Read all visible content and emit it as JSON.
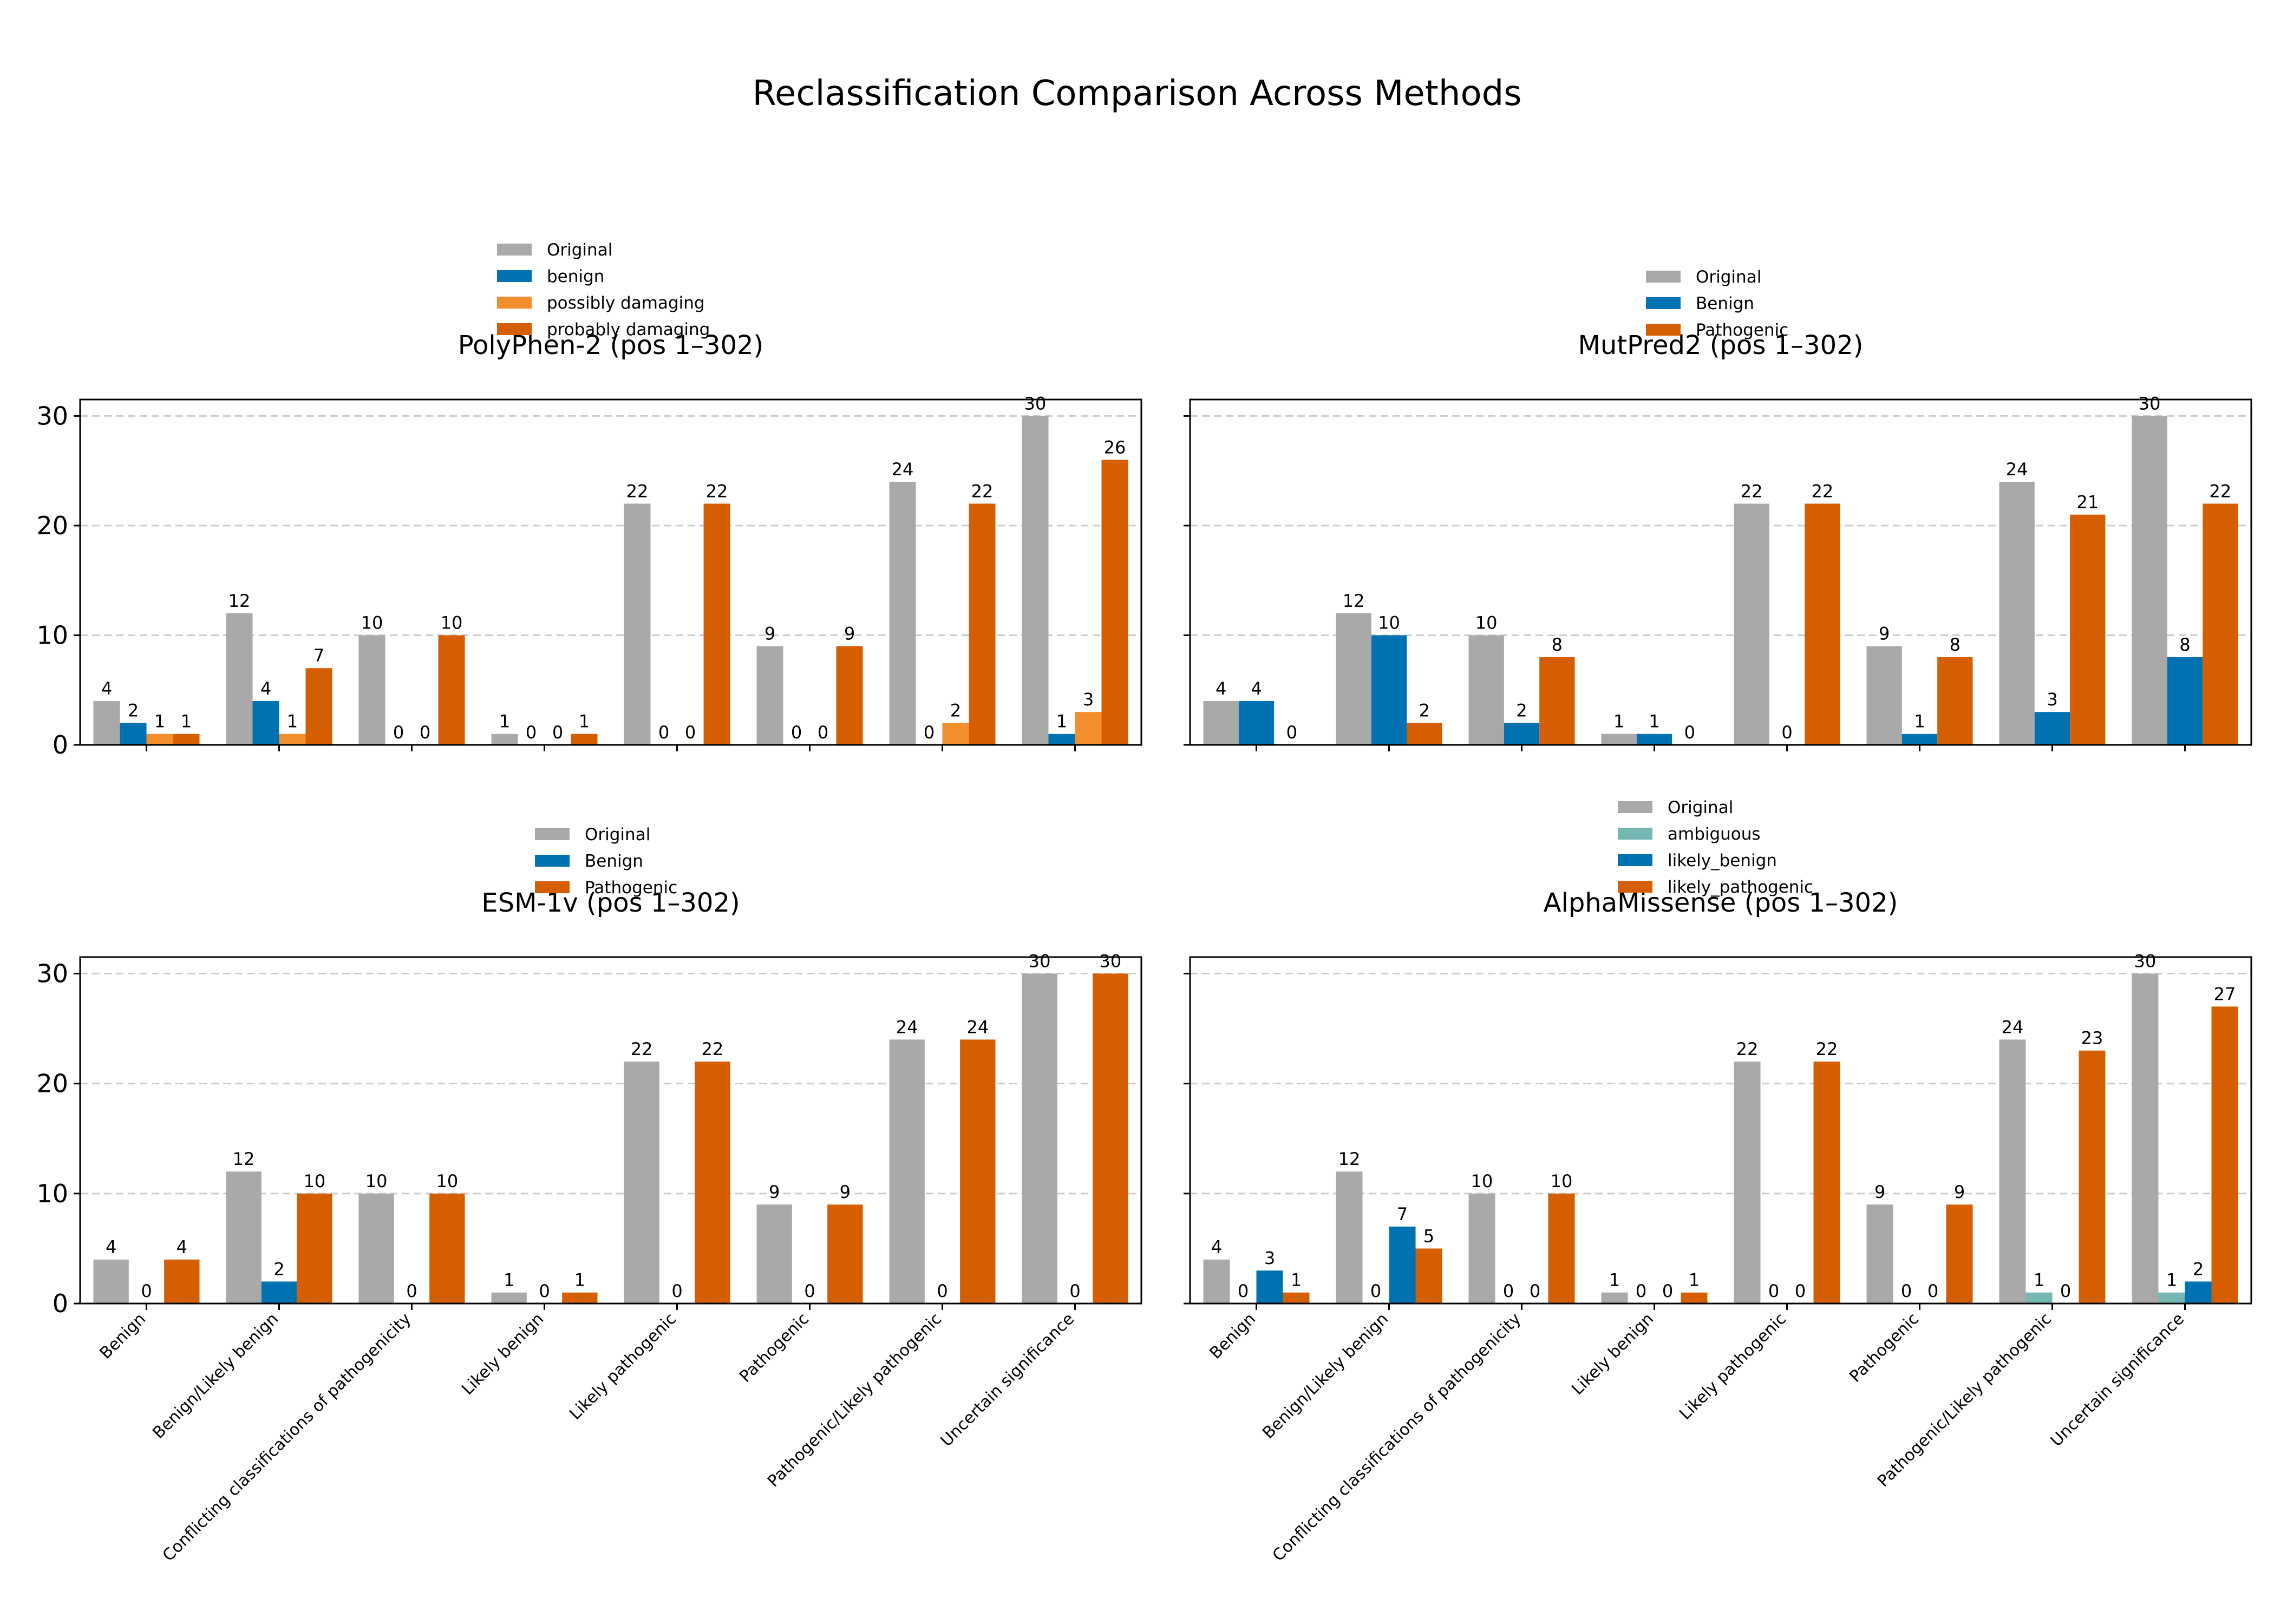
{
  "title": "Reclassification Comparison Across Methods",
  "colors": {
    "Original": "#a9a9a9",
    "benign": "#0072b2",
    "possibly_damaging": "#f28e2b",
    "pathogenic": "#d55e00",
    "ambiguous": "#76b7b2",
    "grid": "#cccccc"
  },
  "chart_data": [
    {
      "type": "bar",
      "title": "PolyPhen-2 (pos 1–302)",
      "categories": [
        "Benign",
        "Benign/Likely benign",
        "Conflicting classifications of pathogenicity",
        "Likely benign",
        "Likely pathogenic",
        "Pathogenic",
        "Pathogenic/Likely pathogenic",
        "Uncertain significance"
      ],
      "series": [
        {
          "name": "Original",
          "color": "#a9a9a9",
          "values": [
            4,
            12,
            10,
            1,
            22,
            9,
            24,
            30
          ]
        },
        {
          "name": "benign",
          "color": "#0072b2",
          "values": [
            2,
            4,
            0,
            0,
            0,
            0,
            0,
            1
          ]
        },
        {
          "name": "possibly damaging",
          "color": "#f28e2b",
          "values": [
            1,
            1,
            0,
            0,
            0,
            0,
            2,
            3
          ]
        },
        {
          "name": "probably damaging",
          "color": "#d55e00",
          "values": [
            1,
            7,
            10,
            1,
            22,
            9,
            22,
            26
          ]
        }
      ],
      "ylim": [
        0,
        31.5
      ],
      "yticks": [
        0,
        10,
        20,
        30
      ],
      "grid": true,
      "legend": "above-left",
      "show_xticklabels": false
    },
    {
      "type": "bar",
      "title": "MutPred2 (pos 1–302)",
      "categories": [
        "Benign",
        "Benign/Likely benign",
        "Conflicting classifications of pathogenicity",
        "Likely benign",
        "Likely pathogenic",
        "Pathogenic",
        "Pathogenic/Likely pathogenic",
        "Uncertain significance"
      ],
      "series": [
        {
          "name": "Original",
          "color": "#a9a9a9",
          "values": [
            4,
            12,
            10,
            1,
            22,
            9,
            24,
            30
          ]
        },
        {
          "name": "Benign",
          "color": "#0072b2",
          "values": [
            4,
            10,
            2,
            1,
            0,
            1,
            3,
            8
          ]
        },
        {
          "name": "Pathogenic",
          "color": "#d55e00",
          "values": [
            0,
            2,
            8,
            0,
            22,
            8,
            21,
            22
          ]
        }
      ],
      "ylim": [
        0,
        31.5
      ],
      "yticks": [
        0,
        10,
        20,
        30
      ],
      "grid": true,
      "legend": "above-right",
      "show_xticklabels": false,
      "show_yticklabels": false
    },
    {
      "type": "bar",
      "title": "ESM-1v (pos 1–302)",
      "categories": [
        "Benign",
        "Benign/Likely benign",
        "Conflicting classifications of pathogenicity",
        "Likely benign",
        "Likely pathogenic",
        "Pathogenic",
        "Pathogenic/Likely pathogenic",
        "Uncertain significance"
      ],
      "series": [
        {
          "name": "Original",
          "color": "#a9a9a9",
          "values": [
            4,
            12,
            10,
            1,
            22,
            9,
            24,
            30
          ]
        },
        {
          "name": "Benign",
          "color": "#0072b2",
          "values": [
            0,
            2,
            0,
            0,
            0,
            0,
            0,
            0
          ]
        },
        {
          "name": "Pathogenic",
          "color": "#d55e00",
          "values": [
            4,
            10,
            10,
            1,
            22,
            9,
            24,
            30
          ]
        }
      ],
      "ylim": [
        0,
        31.5
      ],
      "yticks": [
        0,
        10,
        20,
        30
      ],
      "grid": true,
      "legend": "above-left",
      "show_xticklabels": true
    },
    {
      "type": "bar",
      "title": "AlphaMissense (pos 1–302)",
      "categories": [
        "Benign",
        "Benign/Likely benign",
        "Conflicting classifications of pathogenicity",
        "Likely benign",
        "Likely pathogenic",
        "Pathogenic",
        "Pathogenic/Likely pathogenic",
        "Uncertain significance"
      ],
      "series": [
        {
          "name": "Original",
          "color": "#a9a9a9",
          "values": [
            4,
            12,
            10,
            1,
            22,
            9,
            24,
            30
          ]
        },
        {
          "name": "ambiguous",
          "color": "#76b7b2",
          "values": [
            0,
            0,
            0,
            0,
            0,
            0,
            1,
            1
          ]
        },
        {
          "name": "likely_benign",
          "color": "#0072b2",
          "values": [
            3,
            7,
            0,
            0,
            0,
            0,
            0,
            2
          ]
        },
        {
          "name": "likely_pathogenic",
          "color": "#d55e00",
          "values": [
            1,
            5,
            10,
            1,
            22,
            9,
            23,
            27
          ]
        }
      ],
      "ylim": [
        0,
        31.5
      ],
      "yticks": [
        0,
        10,
        20,
        30
      ],
      "grid": true,
      "legend": "above-right",
      "show_xticklabels": true,
      "show_yticklabels": false
    }
  ]
}
